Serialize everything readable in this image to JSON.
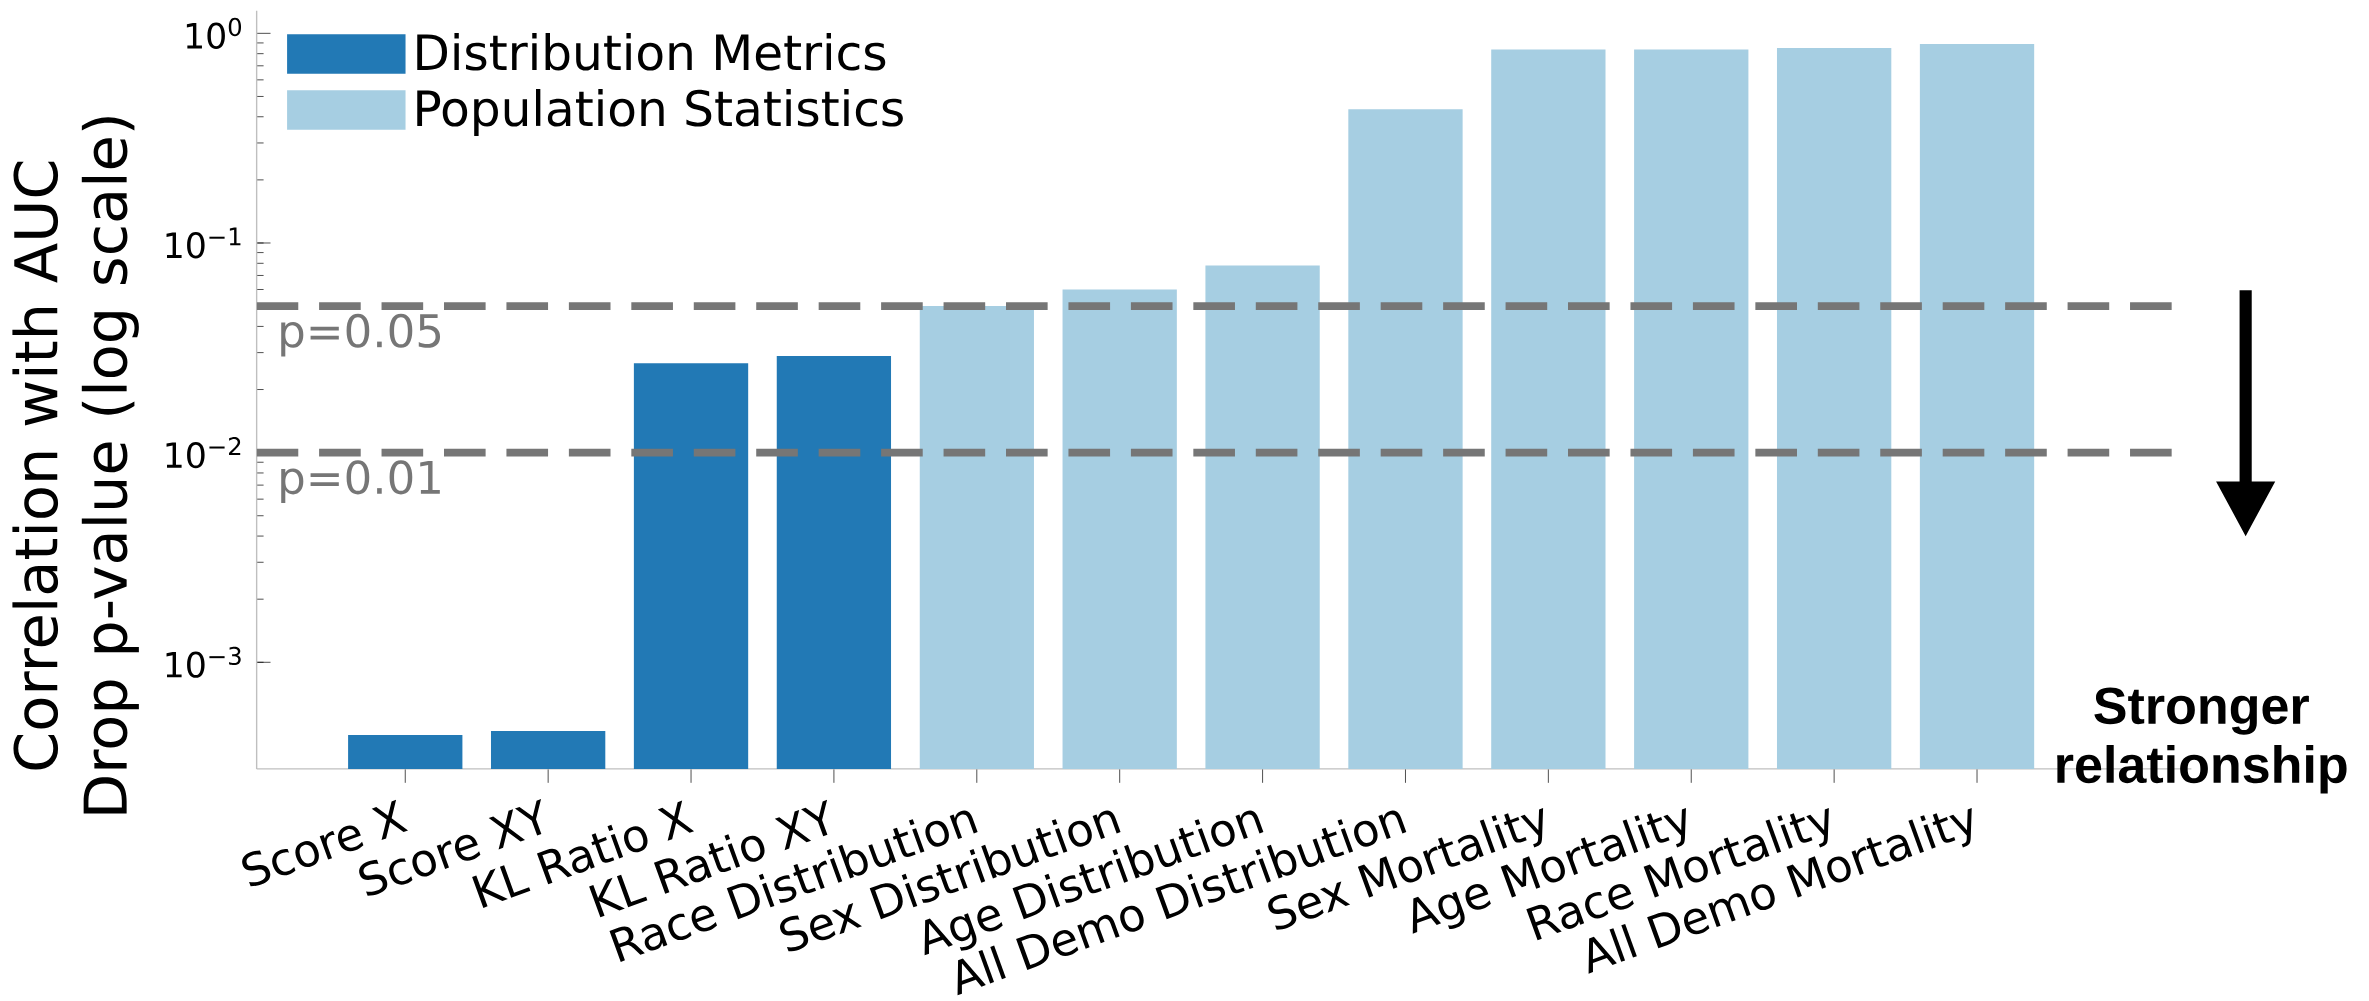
{
  "chart_data": {
    "type": "bar",
    "ylabel": "Correlation with AUC Drop p-value (log scale)",
    "categories": [
      "Score X",
      "Score XY",
      "KL Ratio X",
      "KL Ratio XY",
      "Race Distribution",
      "Sex Distribution",
      "Age Distribution",
      "All Demo Distribution",
      "Sex Mortality",
      "Age Mortality",
      "Race Mortality",
      "All Demo Mortality"
    ],
    "series": [
      {
        "name": "Distribution Metrics",
        "color": "#2279b5",
        "values": [
          0.00045,
          0.00047,
          0.0267,
          0.0289,
          null,
          null,
          null,
          null,
          null,
          null,
          null,
          null
        ]
      },
      {
        "name": "Population Statistics",
        "color": "#a6cee2",
        "values": [
          null,
          null,
          null,
          null,
          0.05,
          0.06,
          0.078,
          0.434,
          0.837,
          0.837,
          0.851,
          0.889
        ]
      }
    ],
    "log": "y",
    "ylim": [
      0.00031,
      1.28
    ],
    "yticks": [
      {
        "value": 0.001,
        "label": "10$^{−3}$"
      },
      {
        "value": 0.01,
        "label": "10$^{−2}$"
      },
      {
        "value": 0.1,
        "label": "10$^{−1}$"
      },
      {
        "value": 1,
        "label": "10$^{0}$"
      }
    ],
    "ref_lines": [
      {
        "axis": "y",
        "value": 0.05,
        "label": "p=0.05",
        "color": "#767676",
        "line_style": "dashed"
      },
      {
        "axis": "y",
        "value": 0.01,
        "label": "p=0.01",
        "color": "#767676",
        "line_style": "dashed"
      }
    ],
    "annotations": [
      "Stronger relationship"
    ],
    "legend": "top left",
    "grid": false
  }
}
